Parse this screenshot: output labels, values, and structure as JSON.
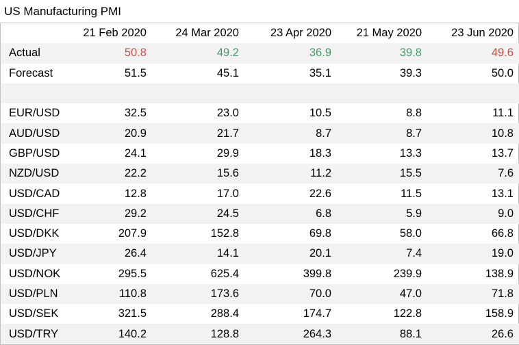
{
  "title": "US Manufacturing PMI",
  "columns": [
    "",
    "21 Feb 2020",
    "24 Mar 2020",
    "23 Apr 2020",
    "21 May 2020",
    "23 Jun 2020"
  ],
  "colors": {
    "red": "#c0504d",
    "green": "#4a9a6a",
    "shade": "#f2f2f2"
  },
  "actual": {
    "label": "Actual",
    "values": [
      "50.8",
      "49.2",
      "36.9",
      "39.8",
      "49.6"
    ],
    "value_colors": [
      "red",
      "green",
      "green",
      "green",
      "red"
    ]
  },
  "forecast": {
    "label": "Forecast",
    "values": [
      "51.5",
      "45.1",
      "35.1",
      "39.3",
      "50.0"
    ]
  },
  "pairs": [
    {
      "label": "EUR/USD",
      "values": [
        "32.5",
        "23.0",
        "10.5",
        "8.8",
        "11.1"
      ]
    },
    {
      "label": "AUD/USD",
      "values": [
        "20.9",
        "21.7",
        "8.7",
        "8.7",
        "10.8"
      ]
    },
    {
      "label": "GBP/USD",
      "values": [
        "24.1",
        "29.9",
        "18.3",
        "13.3",
        "13.7"
      ]
    },
    {
      "label": "NZD/USD",
      "values": [
        "22.2",
        "15.6",
        "11.2",
        "15.5",
        "7.6"
      ]
    },
    {
      "label": "USD/CAD",
      "values": [
        "12.8",
        "17.0",
        "22.6",
        "11.5",
        "13.1"
      ]
    },
    {
      "label": "USD/CHF",
      "values": [
        "29.2",
        "24.5",
        "6.8",
        "5.9",
        "9.0"
      ]
    },
    {
      "label": "USD/DKK",
      "values": [
        "207.9",
        "152.8",
        "69.8",
        "58.0",
        "66.8"
      ]
    },
    {
      "label": "USD/JPY",
      "values": [
        "26.4",
        "14.1",
        "20.1",
        "7.4",
        "19.0"
      ]
    },
    {
      "label": "USD/NOK",
      "values": [
        "295.5",
        "625.4",
        "399.8",
        "239.9",
        "138.9"
      ]
    },
    {
      "label": "USD/PLN",
      "values": [
        "110.8",
        "173.6",
        "70.0",
        "47.0",
        "71.8"
      ]
    },
    {
      "label": "USD/SEK",
      "values": [
        "321.5",
        "288.4",
        "174.7",
        "122.8",
        "158.9"
      ]
    },
    {
      "label": "USD/TRY",
      "values": [
        "140.2",
        "128.8",
        "264.3",
        "88.1",
        "26.6"
      ]
    }
  ]
}
